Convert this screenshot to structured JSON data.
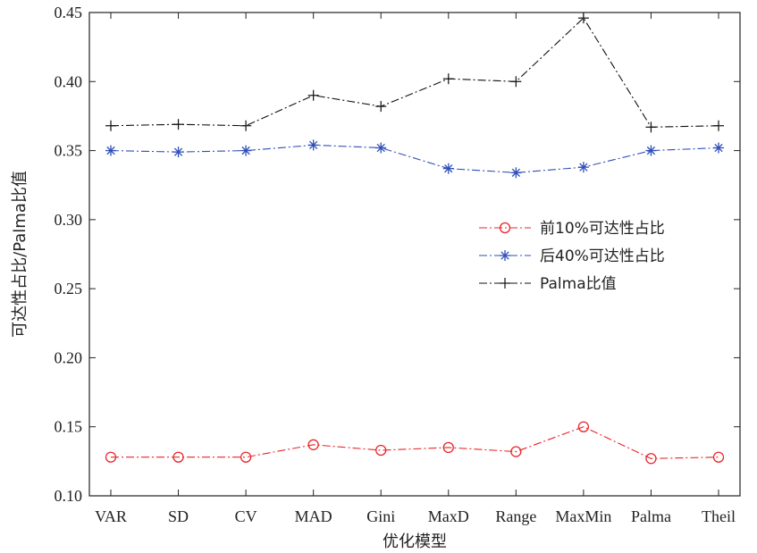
{
  "chart_data": {
    "type": "line",
    "title": "",
    "xlabel": "优化模型",
    "ylabel": "可达性占比/Palma比值",
    "categories": [
      "VAR",
      "SD",
      "CV",
      "MAD",
      "Gini",
      "MaxD",
      "Range",
      "MaxMin",
      "Palma",
      "Theil"
    ],
    "ylim": [
      0.1,
      0.45
    ],
    "yticks": [
      0.1,
      0.15,
      0.2,
      0.25,
      0.3,
      0.35,
      0.4,
      0.45
    ],
    "ytick_labels": [
      "0.10",
      "0.15",
      "0.20",
      "0.25",
      "0.30",
      "0.35",
      "0.40",
      "0.45"
    ],
    "grid": false,
    "legend_position": "center-right",
    "series": [
      {
        "name": "前10%可达性占比",
        "color": "#e8262a",
        "marker": "circle",
        "line_style": "dash-dot",
        "values": [
          0.128,
          0.128,
          0.128,
          0.137,
          0.133,
          0.135,
          0.132,
          0.15,
          0.127,
          0.128
        ]
      },
      {
        "name": "后40%可达性占比",
        "color": "#2f4fb8",
        "marker": "asterisk",
        "line_style": "dash-dot",
        "values": [
          0.35,
          0.349,
          0.35,
          0.354,
          0.352,
          0.337,
          0.334,
          0.338,
          0.35,
          0.352
        ]
      },
      {
        "name": "Palma比值",
        "color": "#111111",
        "marker": "plus",
        "line_style": "dash-dot",
        "values": [
          0.368,
          0.369,
          0.368,
          0.39,
          0.382,
          0.402,
          0.4,
          0.446,
          0.367,
          0.368
        ]
      }
    ]
  }
}
